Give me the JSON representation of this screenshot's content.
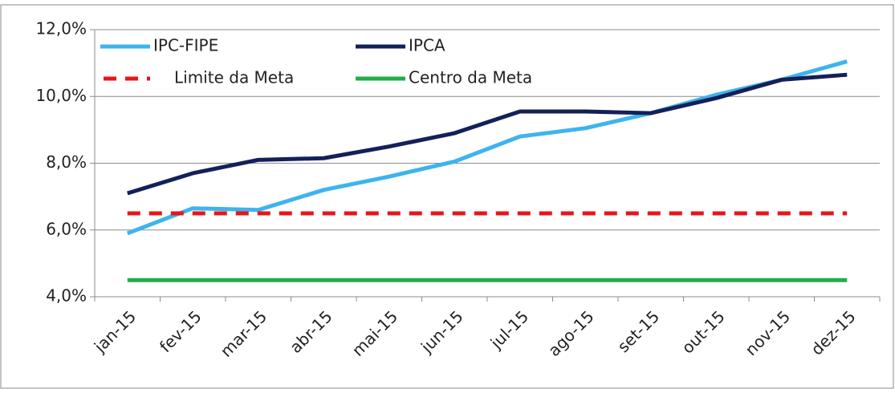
{
  "chart_data": {
    "type": "line",
    "categories": [
      "jan-15",
      "fev-15",
      "mar-15",
      "abr-15",
      "mai-15",
      "jun-15",
      "jul-15",
      "ago-15",
      "set-15",
      "out-15",
      "nov-15",
      "dez-15"
    ],
    "series": [
      {
        "name": "IPC-FIPE",
        "color": "#3db4ee",
        "values": [
          5.9,
          6.65,
          6.6,
          7.2,
          7.6,
          8.05,
          8.8,
          9.05,
          9.5,
          10.05,
          10.5,
          11.05
        ]
      },
      {
        "name": "IPCA",
        "color": "#14205a",
        "values": [
          7.1,
          7.7,
          8.1,
          8.15,
          8.5,
          8.9,
          9.55,
          9.55,
          9.5,
          9.95,
          10.5,
          10.65
        ]
      },
      {
        "name": "Limite da Meta",
        "color": "#e8151b",
        "dashed": true,
        "values": [
          6.5,
          6.5,
          6.5,
          6.5,
          6.5,
          6.5,
          6.5,
          6.5,
          6.5,
          6.5,
          6.5,
          6.5
        ]
      },
      {
        "name": "Centro da Meta",
        "color": "#1fae4a",
        "values": [
          4.5,
          4.5,
          4.5,
          4.5,
          4.5,
          4.5,
          4.5,
          4.5,
          4.5,
          4.5,
          4.5,
          4.5
        ]
      }
    ],
    "ylim": [
      4,
      12
    ],
    "yticks": [
      {
        "value": 4,
        "label": "4,0%"
      },
      {
        "value": 6,
        "label": "6,0%"
      },
      {
        "value": 8,
        "label": "8,0%"
      },
      {
        "value": 10,
        "label": "10,0%"
      },
      {
        "value": 12,
        "label": "12,0%"
      }
    ],
    "grid": true,
    "legend": "top-left"
  }
}
